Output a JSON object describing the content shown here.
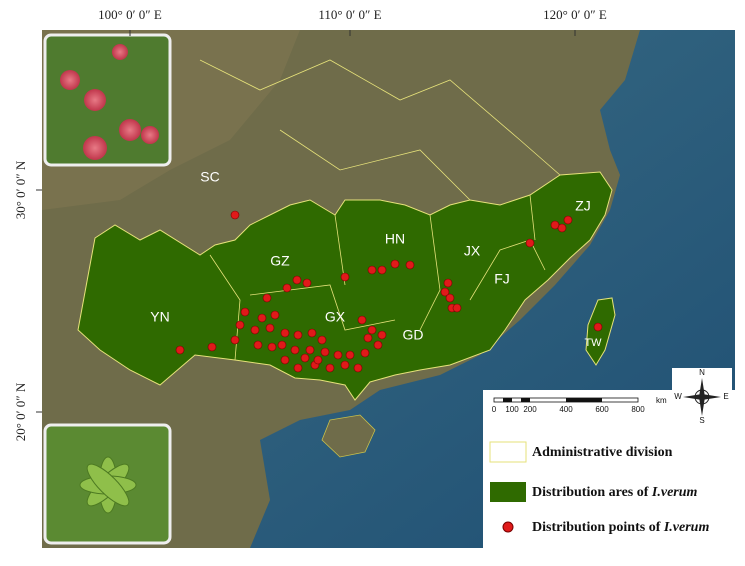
{
  "axes": {
    "top": [
      "100° 0′ 0″ E",
      "110° 0′ 0″ E",
      "120° 0′ 0″ E"
    ],
    "left": [
      "30° 0′ 0″ N",
      "20° 0′ 0″ N"
    ]
  },
  "regions": [
    "SC",
    "GZ",
    "YN",
    "GX",
    "HN",
    "GD",
    "JX",
    "FJ",
    "ZJ",
    "TW"
  ],
  "scale_bar": {
    "ticks": [
      "0",
      "100",
      "200",
      "400",
      "600",
      "800"
    ],
    "unit": "km"
  },
  "compass": {
    "north": "N",
    "south": "S",
    "east": "E",
    "west": "W"
  },
  "legend": [
    {
      "text": "Administrative division"
    },
    {
      "text": "Distribution ares of",
      "species": "I.verum"
    },
    {
      "text": "Distribution points of",
      "species": "I.verum"
    }
  ]
}
